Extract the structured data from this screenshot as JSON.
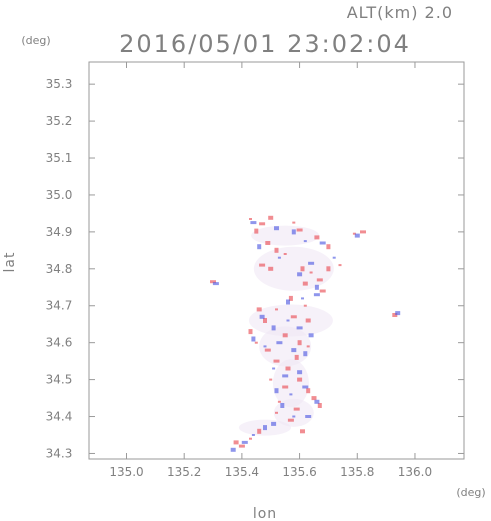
{
  "chart_data": {
    "type": "scatter",
    "title": "2016/05/01 23:02:04",
    "subtitle": "ALT(km) 2.0",
    "xlabel": "lon",
    "ylabel": "lat",
    "xunit": "(deg)",
    "yunit": "(deg)",
    "xlim": [
      134.87,
      136.17
    ],
    "ylim": [
      34.285,
      35.36
    ],
    "xticks": [
      "135.0",
      "135.2",
      "135.4",
      "135.6",
      "135.8",
      "136.0"
    ],
    "yticks": [
      "34.3",
      "34.4",
      "34.5",
      "34.6",
      "34.7",
      "34.8",
      "34.9",
      "35.0",
      "35.1",
      "35.2",
      "35.3"
    ],
    "xtick_values": [
      135.0,
      135.2,
      135.4,
      135.6,
      135.8,
      136.0
    ],
    "ytick_values": [
      34.3,
      34.4,
      34.5,
      34.6,
      34.7,
      34.8,
      34.9,
      35.0,
      35.1,
      35.2,
      35.3
    ],
    "grid": false,
    "colors": {
      "positive": "#e8474f",
      "negative": "#4b55e0",
      "frame": "#999999",
      "text": "#808080"
    },
    "series": [
      {
        "values": [
          [
            135.43,
            34.935
          ],
          [
            135.47,
            34.922
          ],
          [
            135.5,
            34.938
          ],
          [
            135.45,
            34.902
          ],
          [
            135.58,
            34.925
          ],
          [
            135.6,
            34.905
          ],
          [
            135.66,
            34.885
          ],
          [
            135.7,
            34.86
          ],
          [
            135.79,
            34.895
          ],
          [
            135.82,
            34.9
          ],
          [
            135.49,
            34.87
          ],
          [
            135.52,
            34.85
          ],
          [
            135.55,
            34.84
          ],
          [
            135.47,
            34.81
          ],
          [
            135.5,
            34.8
          ],
          [
            135.61,
            34.8
          ],
          [
            135.64,
            34.79
          ],
          [
            135.67,
            34.77
          ],
          [
            135.62,
            34.76
          ],
          [
            135.7,
            34.8
          ],
          [
            135.74,
            34.81
          ],
          [
            135.3,
            34.765
          ],
          [
            135.93,
            34.675
          ],
          [
            135.57,
            34.72
          ],
          [
            135.62,
            34.7
          ],
          [
            135.68,
            34.74
          ],
          [
            135.46,
            34.69
          ],
          [
            135.48,
            34.66
          ],
          [
            135.52,
            34.69
          ],
          [
            135.58,
            34.67
          ],
          [
            135.63,
            34.66
          ],
          [
            135.43,
            34.63
          ],
          [
            135.45,
            34.6
          ],
          [
            135.49,
            34.58
          ],
          [
            135.55,
            34.62
          ],
          [
            135.6,
            34.6
          ],
          [
            135.63,
            34.59
          ],
          [
            135.52,
            34.55
          ],
          [
            135.56,
            34.53
          ],
          [
            135.59,
            34.56
          ],
          [
            135.5,
            34.5
          ],
          [
            135.55,
            34.48
          ],
          [
            135.6,
            34.5
          ],
          [
            135.63,
            34.47
          ],
          [
            135.53,
            34.44
          ],
          [
            135.59,
            34.42
          ],
          [
            135.65,
            34.45
          ],
          [
            135.67,
            34.43
          ],
          [
            135.52,
            34.41
          ],
          [
            135.57,
            34.39
          ],
          [
            135.61,
            34.36
          ],
          [
            135.46,
            34.36
          ],
          [
            135.43,
            34.34
          ],
          [
            135.4,
            34.32
          ],
          [
            135.38,
            34.33
          ]
        ]
      },
      {
        "values": [
          [
            135.44,
            34.925
          ],
          [
            135.52,
            34.91
          ],
          [
            135.58,
            34.9
          ],
          [
            135.62,
            34.875
          ],
          [
            135.68,
            34.87
          ],
          [
            135.8,
            34.89
          ],
          [
            135.46,
            34.86
          ],
          [
            135.53,
            34.83
          ],
          [
            135.64,
            34.815
          ],
          [
            135.6,
            34.785
          ],
          [
            135.66,
            34.75
          ],
          [
            135.72,
            34.83
          ],
          [
            135.31,
            34.76
          ],
          [
            135.94,
            34.68
          ],
          [
            135.56,
            34.71
          ],
          [
            135.61,
            34.72
          ],
          [
            135.66,
            34.73
          ],
          [
            135.47,
            34.67
          ],
          [
            135.51,
            34.64
          ],
          [
            135.56,
            34.66
          ],
          [
            135.6,
            34.64
          ],
          [
            135.64,
            34.62
          ],
          [
            135.44,
            34.61
          ],
          [
            135.48,
            34.59
          ],
          [
            135.53,
            34.6
          ],
          [
            135.58,
            34.58
          ],
          [
            135.62,
            34.57
          ],
          [
            135.51,
            34.53
          ],
          [
            135.55,
            34.51
          ],
          [
            135.6,
            34.52
          ],
          [
            135.52,
            34.47
          ],
          [
            135.57,
            34.46
          ],
          [
            135.62,
            34.48
          ],
          [
            135.66,
            34.44
          ],
          [
            135.54,
            34.43
          ],
          [
            135.58,
            34.4
          ],
          [
            135.63,
            34.4
          ],
          [
            135.51,
            34.38
          ],
          [
            135.48,
            34.37
          ],
          [
            135.44,
            34.35
          ],
          [
            135.41,
            34.33
          ],
          [
            135.37,
            34.31
          ]
        ]
      }
    ]
  }
}
